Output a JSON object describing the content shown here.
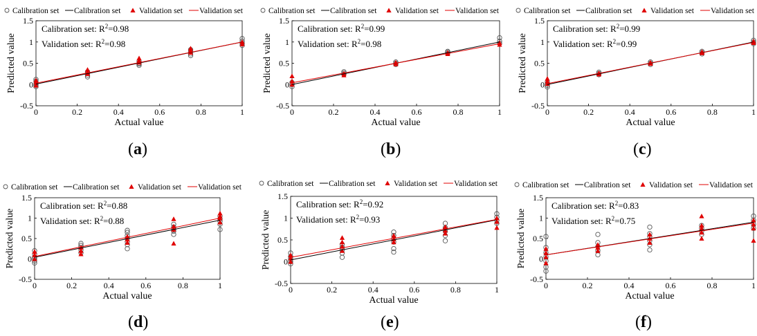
{
  "figure": {
    "panel_labels": [
      "a",
      "b",
      "c",
      "d",
      "e",
      "f"
    ]
  },
  "colors": {
    "calibration_marker": "#555555",
    "calibration_line": "#000000",
    "validation_marker": "#e00000",
    "validation_line": "#e00000"
  },
  "chart_data": [
    {
      "type": "scatter",
      "panel": "a",
      "xlabel": "Actual value",
      "ylabel": "Predicted value",
      "xlim": [
        0,
        1
      ],
      "ylim": [
        -0.5,
        1.5
      ],
      "xticks": [
        "0",
        "0.2",
        "0.4",
        "0.6",
        "0.8",
        "1"
      ],
      "yticks": [
        "-0.5",
        "0",
        "0.5",
        "1",
        "1.5"
      ],
      "legend": [
        "Calibration set",
        "Calibration set",
        "Validation set",
        "Validation set"
      ],
      "annotations": [
        "Calibration set: R",
        "=0.98",
        "Validation set: R",
        "=0.98"
      ],
      "calibration_fit": [
        [
          0,
          0.01
        ],
        [
          1,
          1.0
        ]
      ],
      "validation_fit": [
        [
          0,
          0.03
        ],
        [
          1,
          1.0
        ]
      ],
      "calibration_points": [
        [
          0,
          0.02
        ],
        [
          0,
          -0.05
        ],
        [
          0,
          0.08
        ],
        [
          0,
          0.12
        ],
        [
          0,
          -0.02
        ],
        [
          0.25,
          0.18
        ],
        [
          0.25,
          0.22
        ],
        [
          0.25,
          0.28
        ],
        [
          0.25,
          0.3
        ],
        [
          0.5,
          0.45
        ],
        [
          0.5,
          0.5
        ],
        [
          0.5,
          0.55
        ],
        [
          0.5,
          0.48
        ],
        [
          0.75,
          0.68
        ],
        [
          0.75,
          0.72
        ],
        [
          0.75,
          0.78
        ],
        [
          0.75,
          0.82
        ],
        [
          1,
          0.92
        ],
        [
          1,
          0.97
        ],
        [
          1,
          1.02
        ],
        [
          1,
          1.08
        ]
      ],
      "validation_points": [
        [
          0,
          0.05
        ],
        [
          0,
          -0.02
        ],
        [
          0,
          0.1
        ],
        [
          0.25,
          0.25
        ],
        [
          0.25,
          0.3
        ],
        [
          0.25,
          0.35
        ],
        [
          0.5,
          0.52
        ],
        [
          0.5,
          0.57
        ],
        [
          0.5,
          0.62
        ],
        [
          0.75,
          0.75
        ],
        [
          0.75,
          0.8
        ],
        [
          0.75,
          0.85
        ],
        [
          1,
          0.95
        ],
        [
          1,
          1.0
        ]
      ]
    },
    {
      "type": "scatter",
      "panel": "b",
      "xlabel": "Actual value",
      "ylabel": "Predicted value",
      "xlim": [
        0,
        1
      ],
      "ylim": [
        -0.5,
        1.5
      ],
      "xticks": [
        "0",
        "0.2",
        "0.4",
        "0.6",
        "0.8",
        "1"
      ],
      "yticks": [
        "-0.5",
        "0",
        "0.5",
        "1",
        "1.5"
      ],
      "legend": [
        "Calibration set",
        "Calibration set",
        "Validation set",
        "Validation set"
      ],
      "annotations": [
        "Calibration set: R",
        "=0.99",
        "Validation set: R",
        "=0.98"
      ],
      "calibration_fit": [
        [
          0,
          0.0
        ],
        [
          1,
          1.0
        ]
      ],
      "validation_fit": [
        [
          0,
          0.04
        ],
        [
          1,
          0.96
        ]
      ],
      "calibration_points": [
        [
          0,
          -0.05
        ],
        [
          0,
          0.0
        ],
        [
          0,
          0.05
        ],
        [
          0.25,
          0.24
        ],
        [
          0.25,
          0.27
        ],
        [
          0.25,
          0.3
        ],
        [
          0.5,
          0.47
        ],
        [
          0.5,
          0.5
        ],
        [
          0.5,
          0.53
        ],
        [
          0.75,
          0.73
        ],
        [
          0.75,
          0.76
        ],
        [
          0.75,
          0.78
        ],
        [
          1,
          0.97
        ],
        [
          1,
          1.02
        ],
        [
          1,
          1.1
        ]
      ],
      "validation_points": [
        [
          0,
          0.0
        ],
        [
          0,
          0.08
        ],
        [
          0,
          0.2
        ],
        [
          0.25,
          0.22
        ],
        [
          0.25,
          0.26
        ],
        [
          0.5,
          0.48
        ],
        [
          0.5,
          0.52
        ],
        [
          0.75,
          0.72
        ],
        [
          0.75,
          0.75
        ],
        [
          1,
          0.94
        ],
        [
          1,
          0.98
        ]
      ]
    },
    {
      "type": "scatter",
      "panel": "c",
      "xlabel": "Actual value",
      "ylabel": "Predicted value",
      "xlim": [
        0,
        1
      ],
      "ylim": [
        -0.5,
        1.5
      ],
      "xticks": [
        "0",
        "0.2",
        "0.4",
        "0.6",
        "0.8",
        "1"
      ],
      "yticks": [
        "-0.5",
        "0",
        "0.5",
        "1",
        "1.5"
      ],
      "legend": [
        "Calibration set",
        "Calibration set",
        "Validation set",
        "Validation set"
      ],
      "annotations": [
        "Calibration set: R",
        "=0.99",
        "Validation set: R",
        "=0.99"
      ],
      "calibration_fit": [
        [
          0,
          0.0
        ],
        [
          1,
          1.0
        ]
      ],
      "validation_fit": [
        [
          0,
          0.02
        ],
        [
          1,
          0.99
        ]
      ],
      "calibration_points": [
        [
          0,
          -0.06
        ],
        [
          0,
          -0.02
        ],
        [
          0,
          0.02
        ],
        [
          0,
          0.06
        ],
        [
          0.25,
          0.23
        ],
        [
          0.25,
          0.26
        ],
        [
          0.25,
          0.29
        ],
        [
          0.5,
          0.47
        ],
        [
          0.5,
          0.5
        ],
        [
          0.5,
          0.53
        ],
        [
          0.75,
          0.72
        ],
        [
          0.75,
          0.75
        ],
        [
          0.75,
          0.78
        ],
        [
          1,
          0.96
        ],
        [
          1,
          1.0
        ],
        [
          1,
          1.04
        ]
      ],
      "validation_points": [
        [
          0,
          0.02
        ],
        [
          0,
          0.08
        ],
        [
          0,
          0.14
        ],
        [
          0.25,
          0.24
        ],
        [
          0.25,
          0.27
        ],
        [
          0.5,
          0.49
        ],
        [
          0.5,
          0.52
        ],
        [
          0.75,
          0.74
        ],
        [
          0.75,
          0.77
        ],
        [
          1,
          0.98
        ],
        [
          1,
          1.02
        ]
      ]
    },
    {
      "type": "scatter",
      "panel": "d",
      "xlabel": "Actual value",
      "ylabel": "Predicted value",
      "xlim": [
        0,
        1
      ],
      "ylim": [
        -0.5,
        1.5
      ],
      "xticks": [
        "0",
        "0.2",
        "0.4",
        "0.6",
        "0.8",
        "1"
      ],
      "yticks": [
        "-0.5",
        "0",
        "0.5",
        "1",
        "1.5"
      ],
      "legend": [
        "Calibration set",
        "Calibration set",
        "Validation set",
        "Validation set"
      ],
      "annotations": [
        "Calibration set: R",
        "=0.88",
        "Validation set: R",
        "=0.88"
      ],
      "calibration_fit": [
        [
          0,
          0.04
        ],
        [
          1,
          0.95
        ]
      ],
      "validation_fit": [
        [
          0,
          0.06
        ],
        [
          1,
          1.0
        ]
      ],
      "calibration_points": [
        [
          0,
          -0.1
        ],
        [
          0,
          -0.05
        ],
        [
          0,
          0.0
        ],
        [
          0,
          0.05
        ],
        [
          0,
          0.12
        ],
        [
          0,
          0.2
        ],
        [
          0.25,
          0.15
        ],
        [
          0.25,
          0.22
        ],
        [
          0.25,
          0.28
        ],
        [
          0.25,
          0.33
        ],
        [
          0.25,
          0.38
        ],
        [
          0.5,
          0.25
        ],
        [
          0.5,
          0.35
        ],
        [
          0.5,
          0.42
        ],
        [
          0.5,
          0.5
        ],
        [
          0.5,
          0.57
        ],
        [
          0.5,
          0.65
        ],
        [
          0.5,
          0.7
        ],
        [
          0.75,
          0.6
        ],
        [
          0.75,
          0.68
        ],
        [
          0.75,
          0.72
        ],
        [
          0.75,
          0.78
        ],
        [
          0.75,
          0.85
        ],
        [
          1,
          0.72
        ],
        [
          1,
          0.85
        ],
        [
          1,
          0.92
        ],
        [
          1,
          0.98
        ],
        [
          1,
          1.05
        ]
      ],
      "validation_points": [
        [
          0,
          0.0
        ],
        [
          0,
          0.1
        ],
        [
          0,
          0.18
        ],
        [
          0.25,
          0.12
        ],
        [
          0.25,
          0.2
        ],
        [
          0.25,
          0.28
        ],
        [
          0.5,
          0.4
        ],
        [
          0.5,
          0.48
        ],
        [
          0.5,
          0.55
        ],
        [
          0.75,
          0.38
        ],
        [
          0.75,
          0.72
        ],
        [
          0.75,
          0.8
        ],
        [
          0.75,
          0.98
        ],
        [
          1,
          0.9
        ],
        [
          1,
          1.0
        ],
        [
          1,
          1.05
        ],
        [
          1,
          1.12
        ]
      ]
    },
    {
      "type": "scatter",
      "panel": "e",
      "xlabel": "Actual value",
      "ylabel": "Predicted value",
      "xlim": [
        0,
        1
      ],
      "ylim": [
        -0.5,
        1.5
      ],
      "xticks": [
        "0",
        "0.2",
        "0.4",
        "0.6",
        "0.8",
        "1"
      ],
      "yticks": [
        "-0.5",
        "0",
        "0.5",
        "1",
        "1.5"
      ],
      "legend": [
        "Calibration set",
        "Calibration set",
        "Validation set",
        "Validation set"
      ],
      "annotations": [
        "Calibration set: R",
        "=0.92",
        "Validation set: R",
        "=0.93"
      ],
      "calibration_fit": [
        [
          0,
          0.04
        ],
        [
          1,
          0.96
        ]
      ],
      "validation_fit": [
        [
          0,
          0.1
        ],
        [
          1,
          0.97
        ]
      ],
      "calibration_points": [
        [
          0,
          -0.05
        ],
        [
          0,
          0.0
        ],
        [
          0,
          0.06
        ],
        [
          0,
          0.12
        ],
        [
          0,
          0.2
        ],
        [
          0.25,
          0.1
        ],
        [
          0.25,
          0.2
        ],
        [
          0.25,
          0.27
        ],
        [
          0.25,
          0.33
        ],
        [
          0.25,
          0.4
        ],
        [
          0.5,
          0.22
        ],
        [
          0.5,
          0.3
        ],
        [
          0.5,
          0.45
        ],
        [
          0.5,
          0.52
        ],
        [
          0.5,
          0.6
        ],
        [
          0.5,
          0.68
        ],
        [
          0.75,
          0.48
        ],
        [
          0.75,
          0.6
        ],
        [
          0.75,
          0.7
        ],
        [
          0.75,
          0.78
        ],
        [
          0.75,
          0.88
        ],
        [
          1,
          0.88
        ],
        [
          1,
          0.95
        ],
        [
          1,
          1.02
        ],
        [
          1,
          1.1
        ]
      ],
      "validation_points": [
        [
          0,
          0.0
        ],
        [
          0,
          0.08
        ],
        [
          0,
          0.15
        ],
        [
          0.25,
          0.25
        ],
        [
          0.25,
          0.35
        ],
        [
          0.25,
          0.45
        ],
        [
          0.25,
          0.55
        ],
        [
          0.5,
          0.45
        ],
        [
          0.5,
          0.52
        ],
        [
          0.5,
          0.6
        ],
        [
          0.75,
          0.65
        ],
        [
          0.75,
          0.72
        ],
        [
          0.75,
          0.8
        ],
        [
          1,
          0.78
        ],
        [
          1,
          0.92
        ],
        [
          1,
          1.0
        ]
      ]
    },
    {
      "type": "scatter",
      "panel": "f",
      "xlabel": "Actual value",
      "ylabel": "Predicted value",
      "xlim": [
        0,
        1
      ],
      "ylim": [
        -0.5,
        1.5
      ],
      "xticks": [
        "0",
        "0.2",
        "0.4",
        "0.6",
        "0.8",
        "1"
      ],
      "yticks": [
        "-0.5",
        "0",
        "0.5",
        "1",
        "1.5"
      ],
      "legend": [
        "Calibration set",
        "Calibration set",
        "Validation set",
        "Validation set"
      ],
      "annotations": [
        "Calibration set: R",
        "=0.83",
        "Validation set: R",
        "=0.75"
      ],
      "calibration_fit": [
        [
          0,
          0.1
        ],
        [
          1,
          0.9
        ]
      ],
      "validation_fit": [
        [
          0,
          0.1
        ],
        [
          1,
          0.88
        ]
      ],
      "calibration_points": [
        [
          0,
          -0.3
        ],
        [
          0,
          -0.2
        ],
        [
          0,
          -0.05
        ],
        [
          0,
          0.05
        ],
        [
          0,
          0.15
        ],
        [
          0,
          0.28
        ],
        [
          0,
          0.55
        ],
        [
          0.25,
          0.1
        ],
        [
          0.25,
          0.2
        ],
        [
          0.25,
          0.3
        ],
        [
          0.25,
          0.4
        ],
        [
          0.25,
          0.6
        ],
        [
          0.5,
          0.22
        ],
        [
          0.5,
          0.35
        ],
        [
          0.5,
          0.45
        ],
        [
          0.5,
          0.55
        ],
        [
          0.5,
          0.62
        ],
        [
          0.5,
          0.78
        ],
        [
          0.75,
          0.6
        ],
        [
          0.75,
          0.68
        ],
        [
          0.75,
          0.75
        ],
        [
          0.75,
          0.82
        ],
        [
          1,
          0.75
        ],
        [
          1,
          0.85
        ],
        [
          1,
          0.95
        ],
        [
          1,
          1.05
        ]
      ],
      "validation_points": [
        [
          0,
          -0.1
        ],
        [
          0,
          0.05
        ],
        [
          0,
          0.15
        ],
        [
          0,
          0.25
        ],
        [
          0.25,
          0.2
        ],
        [
          0.25,
          0.28
        ],
        [
          0.25,
          0.35
        ],
        [
          0.5,
          0.4
        ],
        [
          0.5,
          0.5
        ],
        [
          0.5,
          0.6
        ],
        [
          0.75,
          0.5
        ],
        [
          0.75,
          0.65
        ],
        [
          0.75,
          0.75
        ],
        [
          0.75,
          0.82
        ],
        [
          0.75,
          1.05
        ],
        [
          1,
          0.45
        ],
        [
          1,
          0.75
        ],
        [
          1,
          0.85
        ],
        [
          1,
          0.95
        ]
      ]
    }
  ]
}
